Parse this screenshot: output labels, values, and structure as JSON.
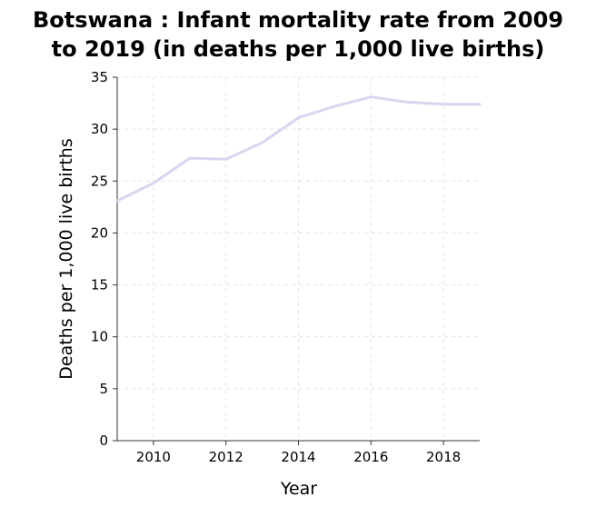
{
  "chart_data": {
    "type": "line",
    "title_lines": [
      "Botswana : Infant mortality rate from 2009",
      "to 2019 (in deaths per 1,000 live births)"
    ],
    "xlabel": "Year",
    "ylabel": "Deaths per 1,000 live births",
    "xlim": [
      2009,
      2019
    ],
    "ylim": [
      0,
      35
    ],
    "x_ticks": [
      2010,
      2012,
      2014,
      2016,
      2018
    ],
    "y_ticks": [
      0,
      5,
      10,
      15,
      20,
      25,
      30,
      35
    ],
    "grid": true,
    "line_color": "#d9d5ee",
    "x": [
      2009,
      2010,
      2011,
      2012,
      2013,
      2014,
      2015,
      2016,
      2017,
      2018,
      2019
    ],
    "values": [
      23.1,
      24.8,
      27.2,
      27.1,
      28.7,
      31.1,
      32.2,
      33.1,
      32.6,
      32.4,
      32.4
    ]
  }
}
